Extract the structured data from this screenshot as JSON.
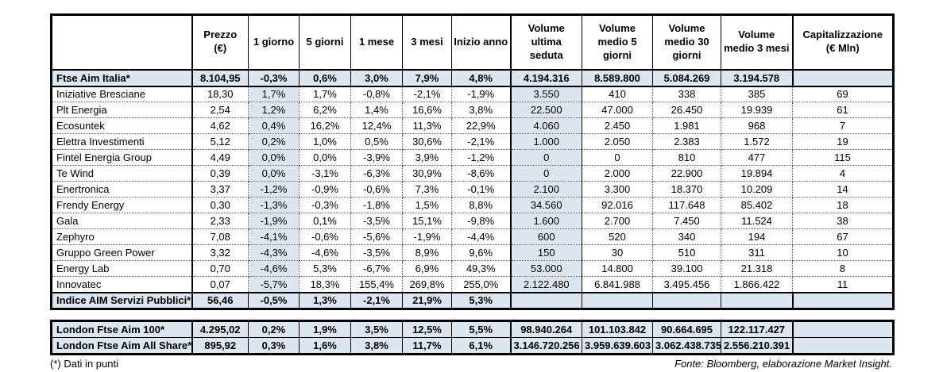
{
  "page": {
    "highlight": "#dce6f1"
  },
  "main_table": {
    "columns": [
      "",
      "Prezzo\n(€)",
      "1 giorno",
      "5 giorni",
      "1 mese",
      "3 mesi",
      "Inizio anno",
      "Volume\nultima\nseduta",
      "Volume\nmedio 5\ngiorni",
      "Volume\nmedio 30\ngiorni",
      "Volume\nmedio 3 mesi",
      "Capitalizzazione\n(€ Mln)"
    ],
    "rows": [
      {
        "type": "index",
        "name": "Ftse Aim Italia*",
        "cells": [
          "8.104,95",
          "-0,3%",
          "0,6%",
          "3,0%",
          "7,9%",
          "4,8%",
          "4.194.316",
          "8.589.800",
          "5.084.269",
          "3.194.578",
          ""
        ]
      },
      {
        "type": "data",
        "name": "Iniziative Bresciane",
        "cells": [
          "18,30",
          "1,7%",
          "1,7%",
          "-0,8%",
          "-2,1%",
          "-1,9%",
          "3.550",
          "410",
          "338",
          "385",
          "69"
        ]
      },
      {
        "type": "data",
        "name": "Plt Energia",
        "cells": [
          "2,54",
          "1,2%",
          "6,2%",
          "1,4%",
          "16,6%",
          "3,8%",
          "22.500",
          "47.000",
          "26.450",
          "19.939",
          "61"
        ]
      },
      {
        "type": "data",
        "name": "Ecosuntek",
        "cells": [
          "4,62",
          "0,4%",
          "16,2%",
          "12,4%",
          "11,3%",
          "22,9%",
          "4.060",
          "2.450",
          "1.981",
          "968",
          "7"
        ]
      },
      {
        "type": "data",
        "name": "Elettra Investimenti",
        "cells": [
          "5,12",
          "0,2%",
          "1,0%",
          "0,5%",
          "30,6%",
          "-2,1%",
          "1.000",
          "2.050",
          "2.383",
          "1.572",
          "19"
        ]
      },
      {
        "type": "data",
        "name": "Fintel Energia Group",
        "cells": [
          "4,49",
          "0,0%",
          "0,0%",
          "-3,9%",
          "3,9%",
          "-1,2%",
          "0",
          "0",
          "810",
          "477",
          "115"
        ]
      },
      {
        "type": "data",
        "name": "Te Wind",
        "cells": [
          "0,39",
          "0,0%",
          "-3,1%",
          "-6,3%",
          "30,9%",
          "-8,6%",
          "0",
          "2.000",
          "22.900",
          "19.894",
          "4"
        ]
      },
      {
        "type": "data",
        "name": "Enertronica",
        "cells": [
          "3,37",
          "-1,2%",
          "-0,9%",
          "-0,6%",
          "7,3%",
          "-0,1%",
          "2.100",
          "3.300",
          "18.370",
          "10.209",
          "14"
        ]
      },
      {
        "type": "data",
        "name": "Frendy Energy",
        "cells": [
          "0,30",
          "-1,3%",
          "-0,3%",
          "-1,8%",
          "1,5%",
          "8,8%",
          "34.560",
          "92.016",
          "117.648",
          "85.402",
          "18"
        ]
      },
      {
        "type": "data",
        "name": "Gala",
        "cells": [
          "2,33",
          "-1,9%",
          "0,1%",
          "-3,5%",
          "15,1%",
          "-9,8%",
          "1.600",
          "2.700",
          "7.450",
          "11.524",
          "38"
        ]
      },
      {
        "type": "data",
        "name": "Zephyro",
        "cells": [
          "7,08",
          "-4,1%",
          "-0,6%",
          "-5,6%",
          "-1,9%",
          "-4,4%",
          "600",
          "520",
          "340",
          "194",
          "67"
        ]
      },
      {
        "type": "data",
        "name": "Gruppo Green Power",
        "cells": [
          "3,32",
          "-4,3%",
          "-4,6%",
          "-3,5%",
          "8,9%",
          "9,6%",
          "150",
          "30",
          "510",
          "311",
          "10"
        ]
      },
      {
        "type": "data",
        "name": "Energy Lab",
        "cells": [
          "0,70",
          "-4,6%",
          "5,3%",
          "-6,7%",
          "6,9%",
          "49,3%",
          "53.000",
          "14.800",
          "39.100",
          "21.318",
          "8"
        ]
      },
      {
        "type": "data",
        "name": "Innovatec",
        "cells": [
          "0,07",
          "-5,7%",
          "18,3%",
          "155,4%",
          "269,8%",
          "255,0%",
          "2.122.480",
          "6.841.988",
          "3.495.456",
          "1.866.422",
          "11"
        ]
      },
      {
        "type": "index",
        "name": "Indice AIM Servizi Pubblici*",
        "cells": [
          "56,46",
          "-0,5%",
          "1,3%",
          "-2,1%",
          "21,9%",
          "5,3%",
          "",
          "",
          "",
          "",
          ""
        ]
      }
    ]
  },
  "london_table": {
    "rows": [
      {
        "type": "london",
        "name": "London Ftse Aim 100*",
        "cells": [
          "4.295,02",
          "0,2%",
          "1,9%",
          "3,5%",
          "12,5%",
          "5,5%",
          "98.940.264",
          "101.103.842",
          "90.664.695",
          "122.117.427",
          ""
        ]
      },
      {
        "type": "london",
        "name": "London Ftse Aim All Share*",
        "cells": [
          "895,92",
          "0,3%",
          "1,6%",
          "3,8%",
          "11,7%",
          "6,1%",
          "3.146.720.256",
          "3.959.639.603",
          "3.062.438.735",
          "2.556.210.391",
          ""
        ]
      }
    ]
  },
  "footnote": "(*) Dati in punti",
  "source": "Fonte: Bloomberg, elaborazione Market Insight."
}
